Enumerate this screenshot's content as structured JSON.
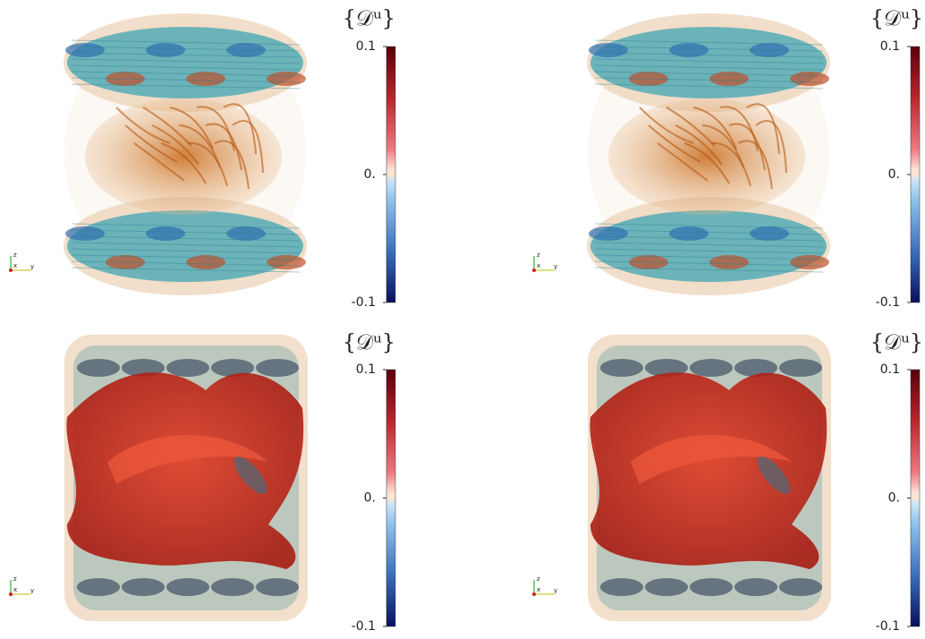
{
  "panels": [
    {
      "colorbar": {
        "title": "{𝒟ᵘ}",
        "range": [
          -0.1,
          0.1
        ],
        "ticks": [
          {
            "value": 0.1,
            "label": "0.1"
          },
          {
            "value": 0,
            "label": "0."
          },
          {
            "value": -0.1,
            "label": "-0.1"
          }
        ]
      },
      "axes": [
        "z",
        "x",
        "y"
      ]
    },
    {
      "colorbar": {
        "title": "{𝒟ᵘ}",
        "range": [
          -0.1,
          0.1
        ],
        "ticks": [
          {
            "value": 0.1,
            "label": "0.1"
          },
          {
            "value": 0,
            "label": "0."
          },
          {
            "value": -0.1,
            "label": "-0.1"
          }
        ]
      },
      "axes": [
        "z",
        "x",
        "y"
      ]
    },
    {
      "colorbar": {
        "title": "{𝒟ᵘ}",
        "range": [
          -0.1,
          0.1
        ],
        "ticks": [
          {
            "value": 0.1,
            "label": "0.1"
          },
          {
            "value": 0,
            "label": "0."
          },
          {
            "value": -0.1,
            "label": "-0.1"
          }
        ]
      },
      "axes": [
        "z",
        "x",
        "y"
      ]
    },
    {
      "colorbar": {
        "title": "{𝒟ᵘ}",
        "range": [
          -0.1,
          0.1
        ],
        "ticks": [
          {
            "value": 0.1,
            "label": "0.1"
          },
          {
            "value": 0,
            "label": "0."
          },
          {
            "value": -0.1,
            "label": "-0.1"
          }
        ]
      },
      "axes": [
        "z",
        "x",
        "y"
      ]
    }
  ]
}
